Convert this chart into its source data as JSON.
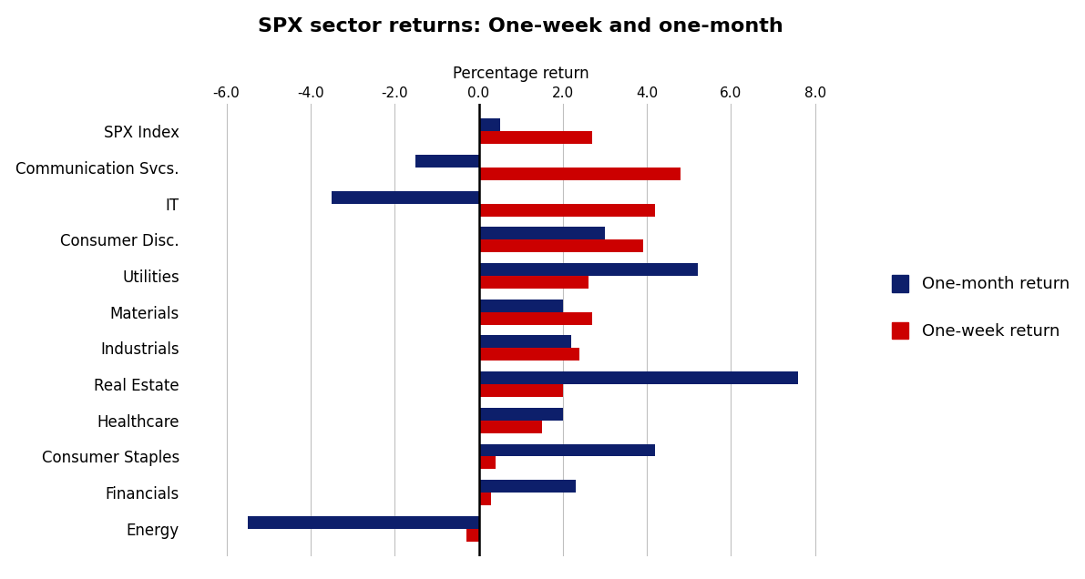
{
  "title": "SPX sector returns: One-week and one-month",
  "xlabel": "Percentage return",
  "categories": [
    "SPX Index",
    "Communication Svcs.",
    "IT",
    "Consumer Disc.",
    "Utilities",
    "Materials",
    "Industrials",
    "Real Estate",
    "Healthcare",
    "Consumer Staples",
    "Financials",
    "Energy"
  ],
  "one_month_return": [
    0.5,
    -1.5,
    -3.5,
    3.0,
    5.2,
    2.0,
    2.2,
    7.6,
    2.0,
    4.2,
    2.3,
    -5.5
  ],
  "one_week_return": [
    2.7,
    4.8,
    4.2,
    3.9,
    2.6,
    2.7,
    2.4,
    2.0,
    1.5,
    0.4,
    0.3,
    -0.3
  ],
  "one_month_color": "#0d1f6b",
  "one_week_color": "#cc0000",
  "xlim": [
    -7.0,
    9.0
  ],
  "xticks": [
    -6.0,
    -4.0,
    -2.0,
    0.0,
    2.0,
    4.0,
    6.0,
    8.0
  ],
  "xtick_labels": [
    "-6.0",
    "-4.0",
    "-2.0",
    "0.0",
    "2.0",
    "4.0",
    "6.0",
    "8.0"
  ],
  "legend_one_month": "One-month return",
  "legend_one_week": "One-week return",
  "background_color": "#ffffff",
  "bar_height": 0.35,
  "title_fontsize": 16,
  "axis_label_fontsize": 12,
  "tick_fontsize": 11,
  "legend_fontsize": 13
}
